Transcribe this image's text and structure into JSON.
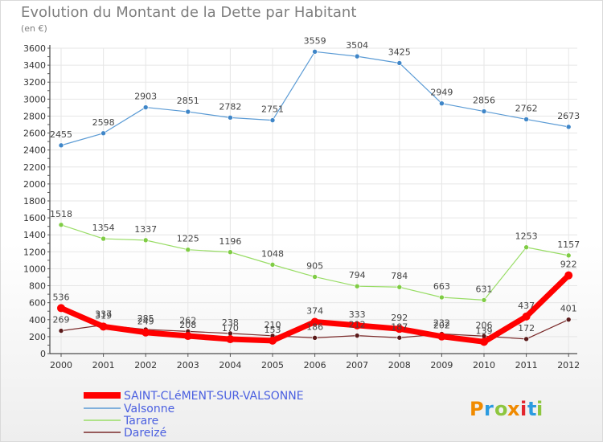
{
  "chart_data": {
    "type": "line",
    "title": "Evolution du Montant de la Dette par Habitant",
    "subtitle": "(en €)",
    "xlabel": "",
    "ylabel": "",
    "ylim": [
      0,
      3600
    ],
    "yticks": [
      0,
      200,
      400,
      600,
      800,
      1000,
      1200,
      1400,
      1600,
      1800,
      2000,
      2200,
      2400,
      2600,
      2800,
      3000,
      3200,
      3400,
      3600
    ],
    "grid": true,
    "legend": "bottom-left",
    "categories": [
      "2000",
      "2001",
      "2002",
      "2003",
      "2004",
      "2005",
      "2006",
      "2007",
      "2008",
      "2009",
      "2010",
      "2011",
      "2012"
    ],
    "series": [
      {
        "name": "SAINT-CLéMENT-SUR-VALSONNE",
        "color": "#ff0000",
        "values": [
          536,
          319,
          249,
          208,
          170,
          153,
          374,
          333,
          292,
          202,
          139,
          437,
          922
        ]
      },
      {
        "name": "Valsonne",
        "color": "#5b9bd5",
        "values": [
          2455,
          2598,
          2903,
          2851,
          2782,
          2751,
          3559,
          3504,
          3425,
          2949,
          2856,
          2762,
          2673
        ]
      },
      {
        "name": "Tarare",
        "color": "#99dd66",
        "values": [
          1518,
          1354,
          1337,
          1225,
          1196,
          1048,
          905,
          794,
          784,
          663,
          631,
          1253,
          1157
        ]
      },
      {
        "name": "Dareizé",
        "color": "#7a2a2a",
        "values": [
          269,
          337,
          285,
          262,
          238,
          210,
          186,
          212,
          187,
          232,
          206,
          172,
          401
        ]
      }
    ]
  },
  "logo": {
    "letters": [
      "P",
      "r",
      "o",
      "x",
      "i",
      "t",
      "i"
    ],
    "colors": [
      "#f08a00",
      "#2b9be0",
      "#8dc63f",
      "#f08a00",
      "#e3262e",
      "#2b9be0",
      "#8dc63f"
    ]
  }
}
